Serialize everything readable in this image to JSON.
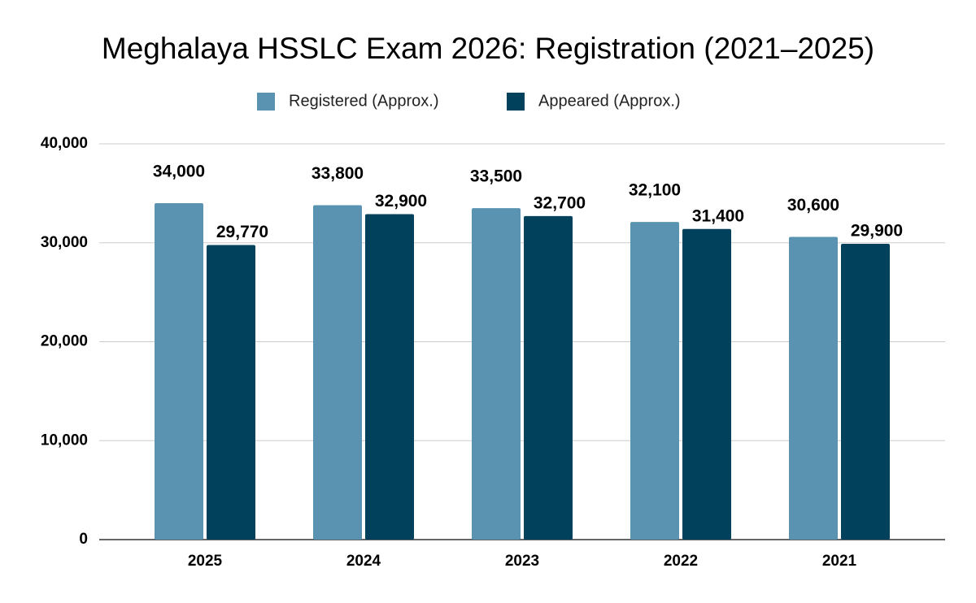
{
  "chart_data": {
    "type": "bar",
    "title": "Meghalaya HSSLC Exam 2026: Registration (2021–2025)",
    "categories": [
      "2025",
      "2024",
      "2023",
      "2022",
      "2021"
    ],
    "series": [
      {
        "name": "Registered (Approx.)",
        "color": "#5a93b1",
        "values": [
          34000,
          33800,
          33500,
          32100,
          30600
        ],
        "value_labels": [
          "34,000",
          "33,800",
          "33,500",
          "32,100",
          "30,600"
        ]
      },
      {
        "name": "Appeared (Approx.)",
        "color": "#02415c",
        "values": [
          29770,
          32900,
          32700,
          31400,
          29900
        ],
        "value_labels": [
          "29,770",
          "32,900",
          "32,700",
          "31,400",
          "29,900"
        ]
      }
    ],
    "ylim": [
      0,
      40000
    ],
    "yticks": [
      0,
      {
        "value": 10000,
        "label": "10,000"
      },
      {
        "value": 20000,
        "label": "20,000"
      },
      {
        "value": 30000,
        "label": "30,000"
      },
      {
        "value": 40000,
        "label": "40,000"
      }
    ],
    "grid": true,
    "legend": "top"
  }
}
